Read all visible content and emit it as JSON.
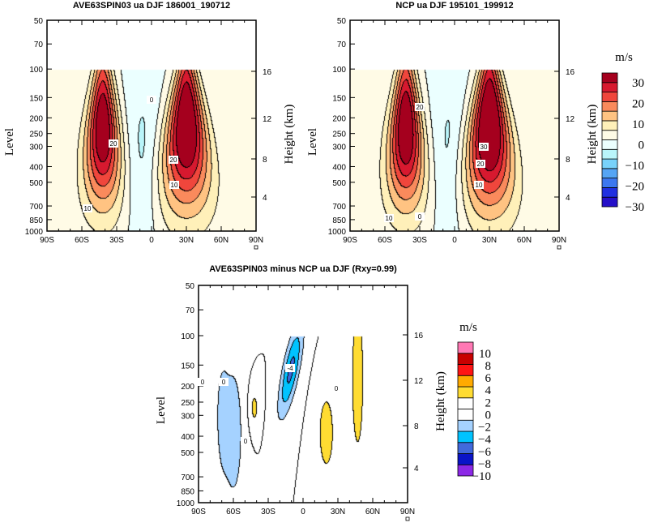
{
  "chart_data": [
    {
      "type": "contour",
      "title": "AVE63SPIN03 ua DJF 186001_190712",
      "ylabel": "Level",
      "ylabel_right": "Height (km)",
      "x_ticks": [
        "90S",
        "60S",
        "30S",
        "0",
        "30N",
        "60N",
        "90N"
      ],
      "xlim": [
        -90,
        90
      ],
      "y_ticks": [
        50,
        70,
        100,
        150,
        200,
        250,
        300,
        400,
        500,
        700,
        850,
        1000
      ],
      "yscale": "log",
      "ylim": [
        1000,
        50
      ],
      "y_right_ticks": [
        4,
        8,
        12,
        16
      ],
      "contour_labels": [
        "20",
        "10",
        "0",
        "20",
        "10"
      ],
      "colorbar": "colorbar_top"
    },
    {
      "type": "contour",
      "title": "NCP ua DJF 195101_199912",
      "ylabel": "Level",
      "ylabel_right": "Height (km)",
      "x_ticks": [
        "90S",
        "60S",
        "30S",
        "0",
        "30N",
        "60N",
        "90N"
      ],
      "xlim": [
        -90,
        90
      ],
      "y_ticks": [
        50,
        70,
        100,
        150,
        200,
        250,
        300,
        400,
        500,
        700,
        850,
        1000
      ],
      "yscale": "log",
      "ylim": [
        1000,
        50
      ],
      "y_right_ticks": [
        4,
        8,
        12,
        16
      ],
      "contour_labels": [
        "20",
        "30",
        "20",
        "10",
        "10",
        "0"
      ],
      "colorbar": "colorbar_top"
    },
    {
      "type": "contour",
      "title": "AVE63SPIN03 minus NCP ua DJF (Rxy=0.99)",
      "ylabel": "Level",
      "ylabel_right": "Height (km)",
      "x_ticks": [
        "90S",
        "60S",
        "30S",
        "0",
        "30N",
        "60N",
        "90N"
      ],
      "xlim": [
        -90,
        90
      ],
      "y_ticks": [
        50,
        70,
        100,
        150,
        200,
        250,
        300,
        400,
        500,
        700,
        850,
        1000
      ],
      "yscale": "log",
      "ylim": [
        1000,
        50
      ],
      "y_right_ticks": [
        4,
        8,
        12,
        16
      ],
      "contour_labels": [
        "0",
        "0",
        "0",
        "0",
        "-4"
      ],
      "colorbar": "colorbar_diff"
    }
  ],
  "colorbar_top": {
    "units": "m/s",
    "levels": [
      -30,
      -25,
      -20,
      -15,
      -10,
      -5,
      0,
      5,
      10,
      15,
      20,
      25,
      30
    ],
    "labels": [
      "30",
      "20",
      "10",
      "0",
      "−10",
      "−20",
      "−30"
    ],
    "colors": [
      "#2510c8",
      "#2030e0",
      "#3c78f0",
      "#55a5f5",
      "#78d2fa",
      "#b9f5fa",
      "#ebffff",
      "#fffbe6",
      "#fff0b9",
      "#ffc382",
      "#fa8a5c",
      "#f0463c",
      "#d7192f",
      "#a5001e"
    ]
  },
  "colorbar_diff": {
    "units": "m/s",
    "levels": [
      -10,
      -8,
      -6,
      -4,
      -2,
      0,
      2,
      4,
      6,
      8,
      10
    ],
    "labels": [
      "10",
      "8",
      "6",
      "4",
      "2",
      "0",
      "−2",
      "−4",
      "−6",
      "−8",
      "−10"
    ],
    "colors": [
      "#8c28e6",
      "#0a14c8",
      "#4169dc",
      "#00c3ff",
      "#a5d2ff",
      "#ffffff",
      "#ffffff",
      "#ffdc32",
      "#ffaa00",
      "#ff1414",
      "#c80000",
      "#ff78b4"
    ]
  }
}
